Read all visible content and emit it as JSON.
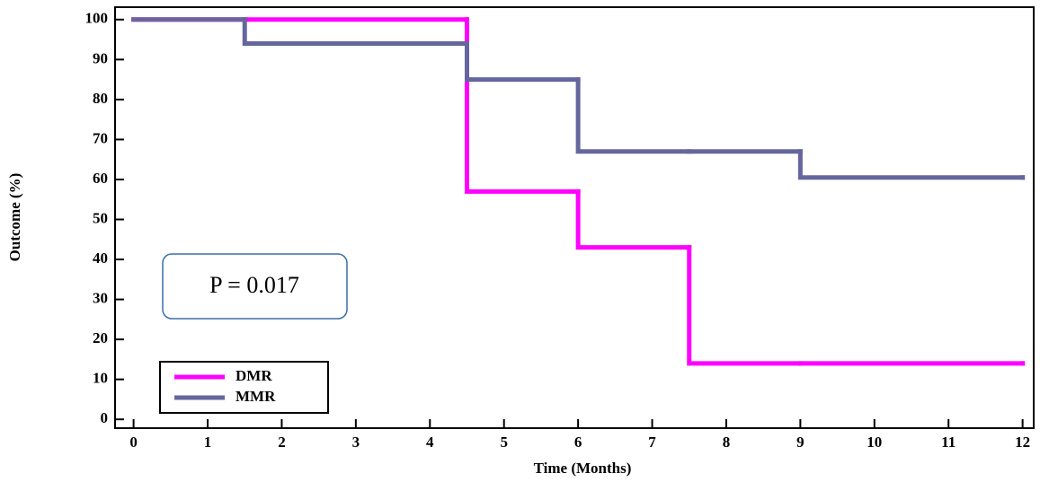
{
  "chart_data": {
    "type": "line",
    "step": "post",
    "x_label": "Time (Months)",
    "y_label": "Outcome (%)",
    "x": [
      0,
      1.5,
      4.5,
      6,
      7.5,
      9,
      12
    ],
    "series": [
      {
        "name": "DMR",
        "color": "#ff00ff",
        "values": [
          100,
          100,
          57,
          43,
          14,
          14,
          14
        ]
      },
      {
        "name": "MMR",
        "color": "#66669e",
        "values": [
          100,
          94,
          85,
          67,
          67,
          60.5,
          60.5
        ]
      }
    ],
    "xlim": [
      -0.25,
      12.15
    ],
    "ylim": [
      -2.2,
      103.1
    ],
    "xticks": [
      0,
      1,
      2,
      3,
      4,
      5,
      6,
      7,
      8,
      9,
      10,
      11,
      12
    ],
    "yticks": [
      0,
      10,
      20,
      30,
      40,
      50,
      60,
      70,
      80,
      90,
      100
    ],
    "annotation": "P = 0.017",
    "legend": "lower left",
    "grid": false
  }
}
